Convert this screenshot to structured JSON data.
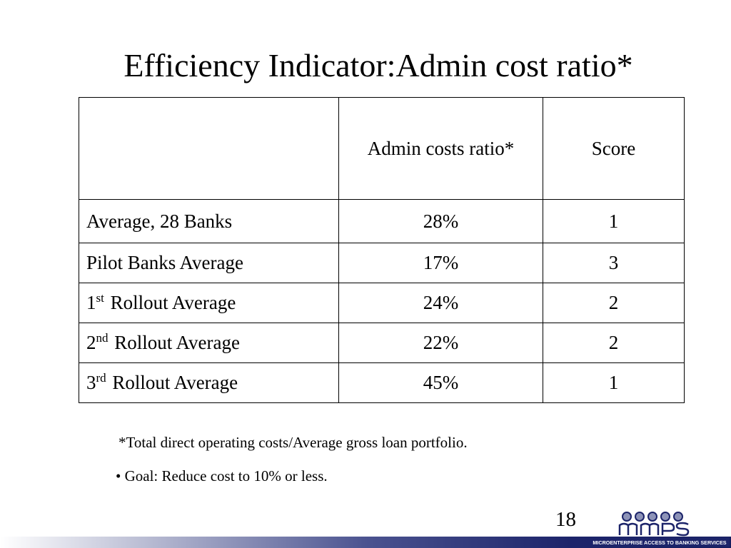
{
  "slide": {
    "title": "Efficiency Indicator:Admin cost ratio*",
    "page_number": "18"
  },
  "table": {
    "headers": [
      "",
      "Admin costs ratio*",
      "Score"
    ],
    "rows": [
      {
        "label": "Average, 28 Banks",
        "sup": "",
        "label_rest": "",
        "ratio": "28%",
        "score": "1"
      },
      {
        "label": "Pilot Banks Average",
        "sup": "",
        "label_rest": "",
        "ratio": "17%",
        "score": "3"
      },
      {
        "label": "1",
        "sup": "st",
        "label_rest": " Rollout Average",
        "ratio": "24%",
        "score": "2"
      },
      {
        "label": "2",
        "sup": "nd",
        "label_rest": " Rollout Average",
        "ratio": "22%",
        "score": "2"
      },
      {
        "label": "3",
        "sup": "rd",
        "label_rest": " Rollout Average",
        "ratio": "45%",
        "score": "1"
      }
    ]
  },
  "notes": {
    "footnote": "*Total direct operating costs/Average gross loan portfolio.",
    "goal": "• Goal:  Reduce cost to 10% or less."
  },
  "logo": {
    "text": "MICROENTERPRISE ACCESS TO BANKING SERVICES",
    "color": "#1c246a"
  },
  "colors": {
    "brand_navy": "#1c246a",
    "bar_mid": "#4b5390"
  }
}
